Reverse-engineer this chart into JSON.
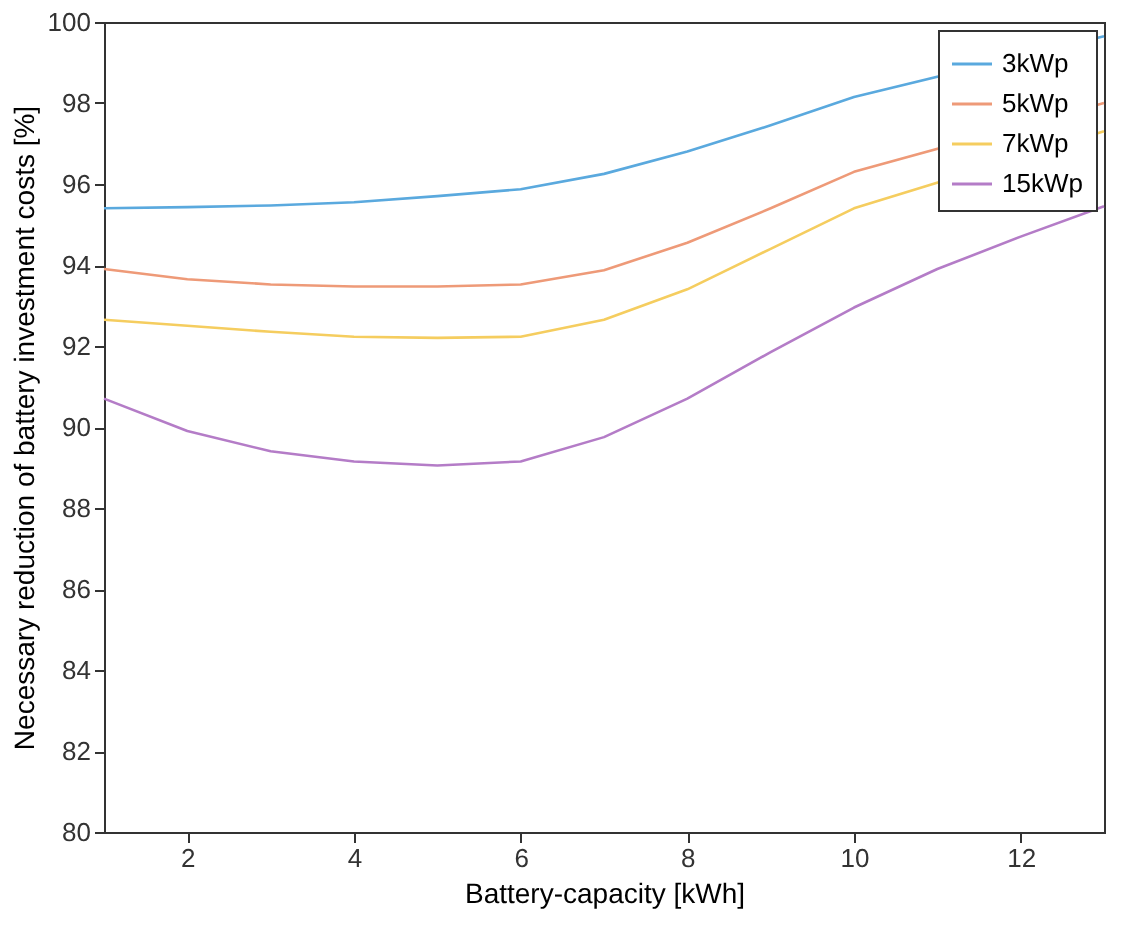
{
  "chart_data": {
    "type": "line",
    "xlabel": "Battery-capacity [kWh]",
    "ylabel": "Necessary reduction of battery investment costs [%]",
    "x": [
      1,
      2,
      3,
      4,
      5,
      6,
      7,
      8,
      9,
      10,
      11,
      12,
      13
    ],
    "series": [
      {
        "name": "3kWp",
        "color": "#5aa9de",
        "values": [
          95.4,
          95.43,
          95.47,
          95.55,
          95.7,
          95.87,
          96.25,
          96.8,
          97.45,
          98.15,
          null,
          null,
          99.65
        ]
      },
      {
        "name": "5kWp",
        "color": "#ee9a78",
        "values": [
          93.9,
          93.65,
          93.52,
          93.47,
          93.47,
          93.52,
          93.87,
          94.55,
          95.4,
          96.3,
          null,
          null,
          98.0
        ]
      },
      {
        "name": "7kWp",
        "color": "#f5cd5f",
        "values": [
          92.65,
          92.5,
          92.35,
          92.23,
          92.2,
          92.23,
          92.65,
          93.4,
          94.4,
          95.4,
          null,
          null,
          97.3
        ]
      },
      {
        "name": "15kWp",
        "color": "#b47cc7",
        "values": [
          90.7,
          89.9,
          89.4,
          89.15,
          89.05,
          89.15,
          89.75,
          90.7,
          91.85,
          92.95,
          93.9,
          94.7,
          95.45
        ]
      }
    ],
    "xlim": [
      1,
      13
    ],
    "xticks": [
      2,
      4,
      6,
      8,
      10,
      12
    ],
    "ylim": [
      80,
      100
    ],
    "yticks": [
      80,
      82,
      84,
      86,
      88,
      90,
      92,
      94,
      96,
      98,
      100
    ],
    "grid": false,
    "legend": "top right",
    "marker": "none",
    "line_style": "solid"
  }
}
